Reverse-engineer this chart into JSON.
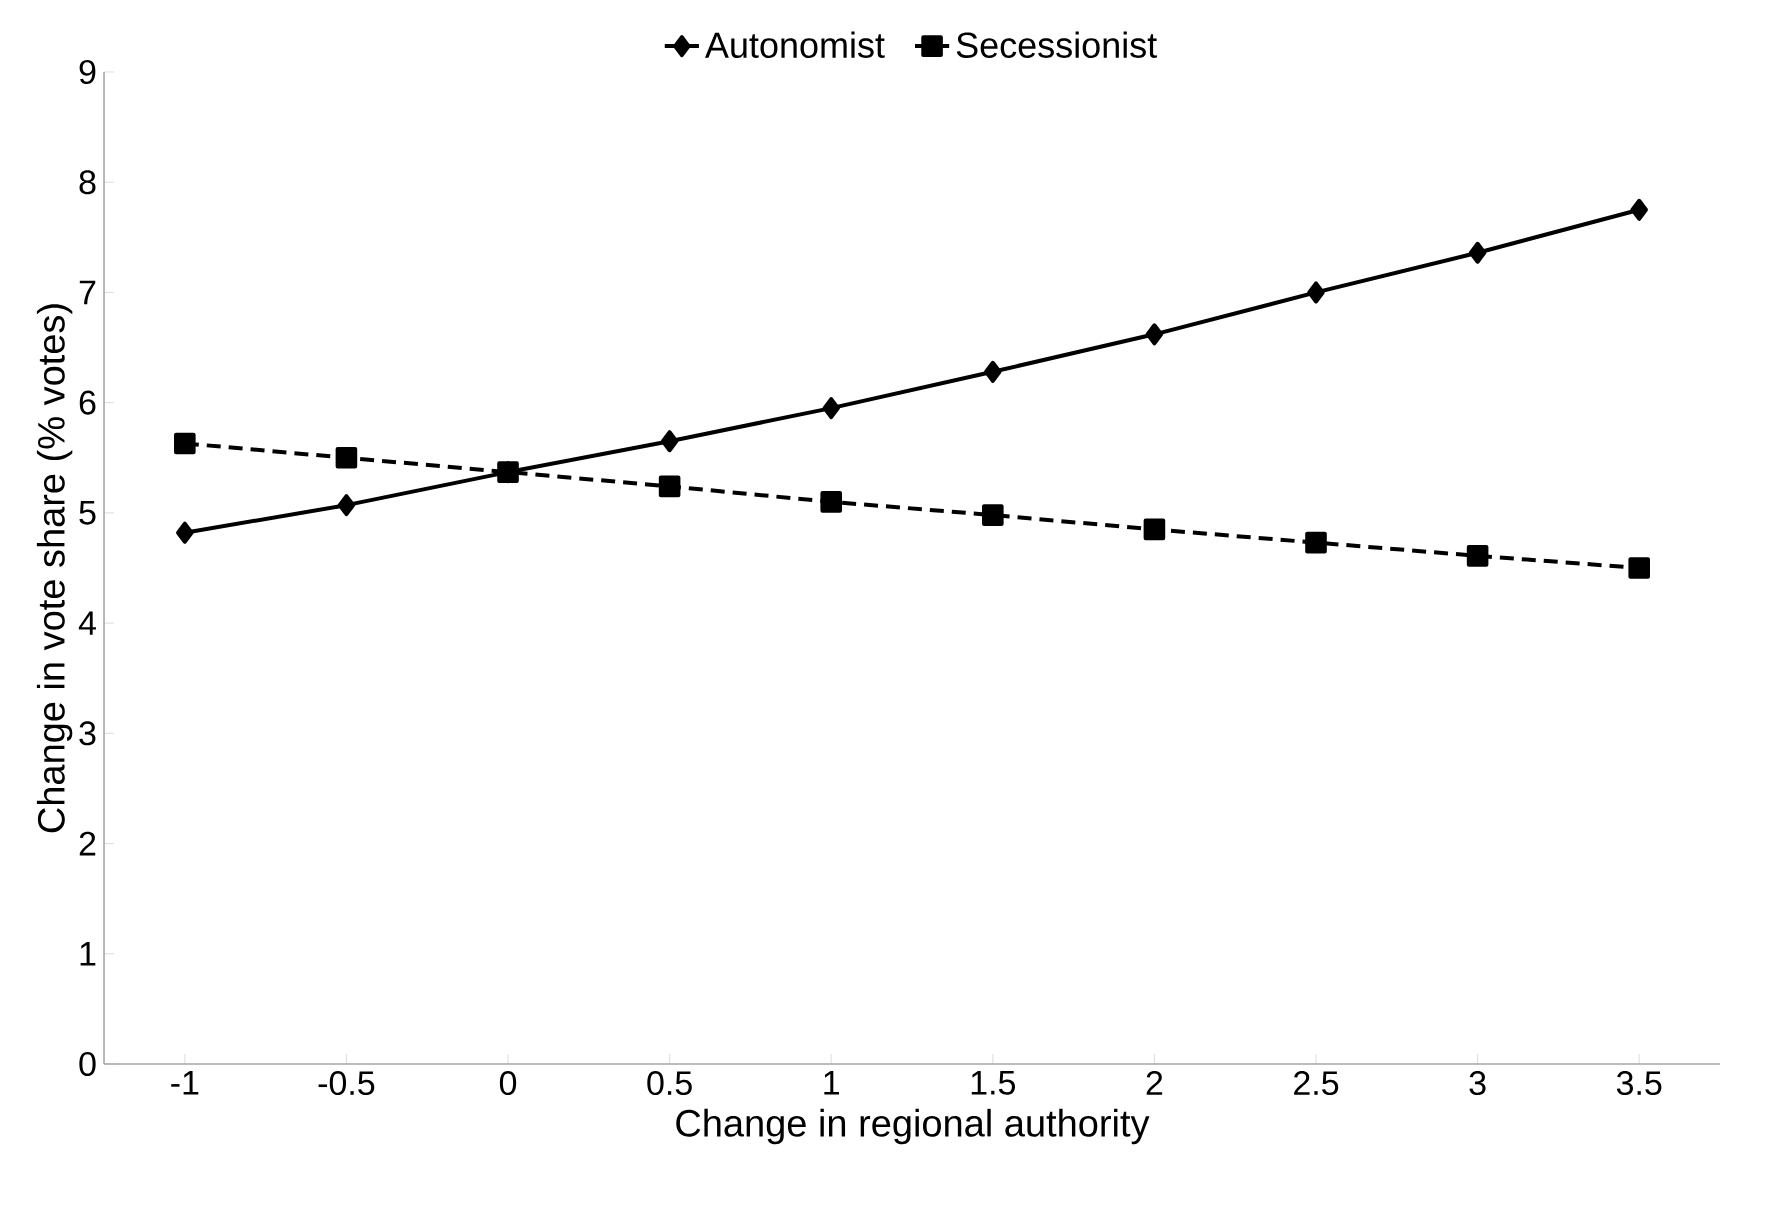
{
  "chart_data": {
    "type": "line",
    "xlabel": "Change in regional authority",
    "ylabel": "Change in vote share (% votes)",
    "categories": [
      "-1",
      "-0.5",
      "0",
      "0.5",
      "1",
      "1.5",
      "2",
      "2.5",
      "3",
      "3.5"
    ],
    "series": [
      {
        "name": "Autonomist",
        "color": "#000000",
        "marker": "diamond",
        "line_style": "solid",
        "values": [
          4.82,
          5.07,
          5.37,
          5.65,
          5.95,
          6.28,
          6.62,
          7.0,
          7.36,
          7.75
        ]
      },
      {
        "name": "Secessionist",
        "color": "#000000",
        "marker": "square",
        "line_style": "dashed",
        "values": [
          5.63,
          5.5,
          5.37,
          5.24,
          5.1,
          4.98,
          4.85,
          4.73,
          4.61,
          4.5
        ]
      }
    ],
    "ylim": [
      0,
      9
    ],
    "yticks": [
      0,
      1,
      2,
      3,
      4,
      5,
      6,
      7,
      8,
      9
    ],
    "grid": false,
    "legend": "top"
  }
}
